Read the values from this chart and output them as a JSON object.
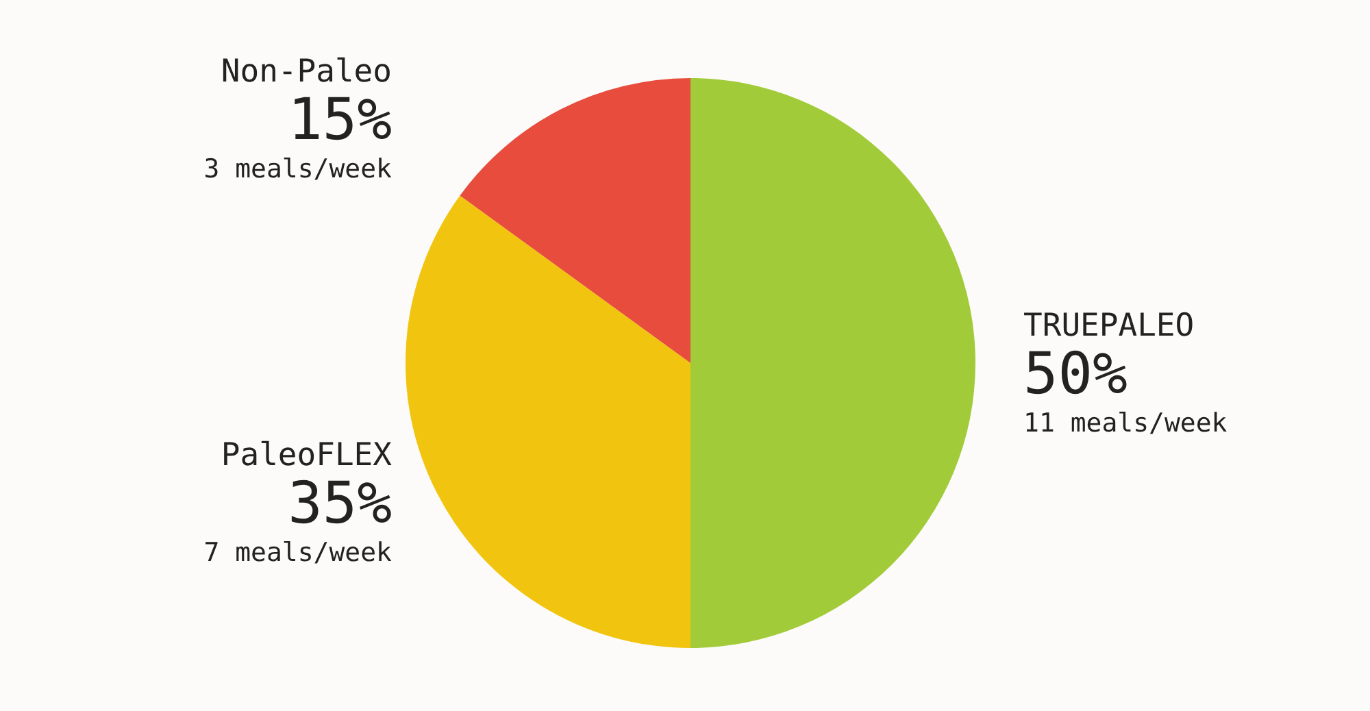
{
  "chart_data": {
    "type": "pie",
    "categories": [
      "TRUEPALEO",
      "PaleoFLEX",
      "Non-Paleo"
    ],
    "values": [
      50,
      35,
      15
    ],
    "colors": [
      "#a2cb39",
      "#f1c40f",
      "#e74c3c"
    ],
    "value_labels": [
      "50%",
      "35%",
      "15%"
    ],
    "annotations": [
      {
        "text": "11 meals/week",
        "x": "TRUEPALEO"
      },
      {
        "text": "7 meals/week",
        "x": "PaleoFLEX"
      },
      {
        "text": "3 meals/week",
        "x": "Non-Paleo"
      }
    ]
  }
}
